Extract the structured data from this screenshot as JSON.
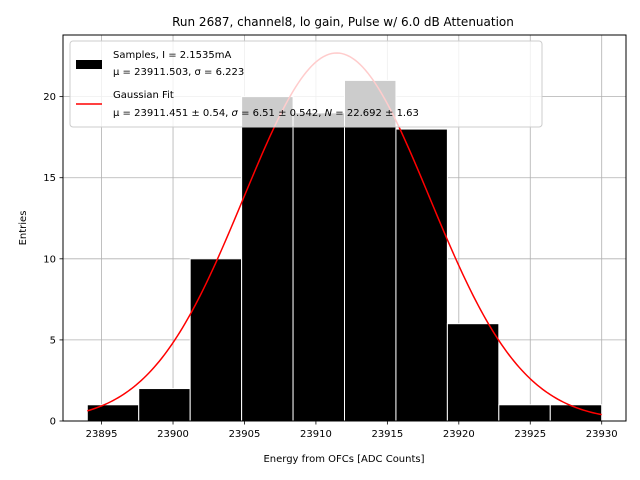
{
  "chart_data": {
    "type": "bar",
    "title": "Run 2687, channel8, lo gain, Pulse w/ 6.0 dB Attenuation",
    "xlabel": "Energy from OFCs [ADC Counts]",
    "ylabel": "Entries",
    "xlim": [
      23892.3,
      23931.7
    ],
    "ylim": [
      0,
      23.8
    ],
    "grid": true,
    "legend_position": "top-left",
    "xticks": [
      23895,
      23900,
      23905,
      23910,
      23915,
      23920,
      23925,
      23930
    ],
    "yticks": [
      0,
      5,
      10,
      15,
      20
    ],
    "histogram": {
      "name": "Samples, I = 2.1535mA",
      "stats": "μ = 23911.503, σ = 6.223",
      "color": "#000000",
      "bin_edges": [
        23894.0,
        23897.6,
        23901.2,
        23904.8,
        23908.4,
        23912.0,
        23915.6,
        23919.2,
        23922.8,
        23926.4,
        23930.0
      ],
      "counts": [
        1,
        2,
        10,
        20,
        19,
        21,
        18,
        6,
        1,
        1
      ]
    },
    "fit": {
      "name": "Gaussian Fit",
      "stats_parts": [
        "μ = 23911.451 ± 0.54, ",
        "σ",
        " = 6.51 ± 0.542, ",
        "N",
        " = 22.692 ± 1.63"
      ],
      "color": "#ff0000",
      "mu": 23911.451,
      "sigma": 6.51,
      "N": 22.692,
      "x_range": [
        23894.0,
        23930.0
      ]
    }
  }
}
